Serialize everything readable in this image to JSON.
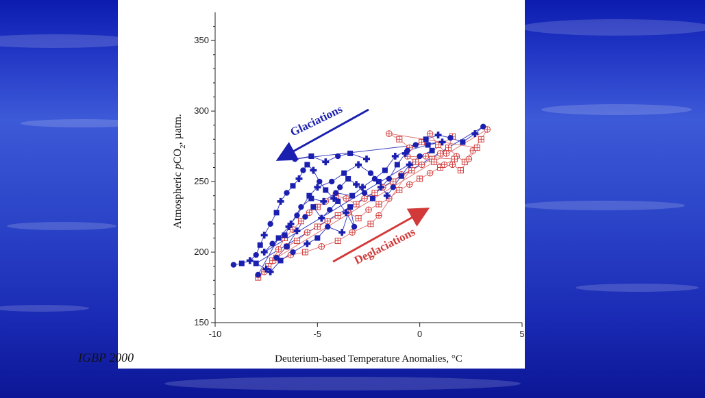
{
  "credit": "IGBP 2000",
  "colors": {
    "glacial": "#1a1fb0",
    "deglacial": "#d23a3a"
  },
  "chart_data": {
    "type": "scatter",
    "title": "",
    "xlabel": "Deuterium-based Temperature Anomalies, °C",
    "ylabel": "Atmospheric pCO2, µatm.",
    "ylabel_parts": {
      "pre": "Atmospheric ",
      "italic": "p",
      "co": "CO",
      "sub": "2",
      "post": ", µatm."
    },
    "xlim": [
      -10,
      5
    ],
    "ylim": [
      150,
      370
    ],
    "xticks": [
      -10,
      -5,
      0,
      5
    ],
    "yticks": [
      150,
      200,
      250,
      300,
      350
    ],
    "grid": false,
    "annotations": [
      {
        "text": "Glaciations",
        "color": "#1a1fb0",
        "arrow": "down-left"
      },
      {
        "text": "Deglaciations",
        "color": "#d23a3a",
        "arrow": "up-right"
      }
    ],
    "series": [
      {
        "color": "#1a1fb0",
        "points": [
          [
            -9.1,
            191
          ],
          [
            -8.7,
            192
          ],
          [
            -8.3,
            194
          ],
          [
            -8.0,
            198
          ],
          [
            -7.8,
            205
          ],
          [
            -7.6,
            212
          ],
          [
            -7.3,
            220
          ],
          [
            -7.0,
            228
          ],
          [
            -6.8,
            236
          ],
          [
            -6.5,
            242
          ],
          [
            -6.2,
            247
          ],
          [
            -5.9,
            252
          ],
          [
            -5.7,
            258
          ],
          [
            -5.5,
            262
          ],
          [
            -5.2,
            258
          ],
          [
            -4.9,
            250
          ],
          [
            -4.6,
            244
          ],
          [
            -4.2,
            238
          ],
          [
            -3.9,
            246
          ],
          [
            -3.5,
            252
          ],
          [
            -3.1,
            248
          ],
          [
            -2.7,
            242
          ],
          [
            -2.3,
            238
          ],
          [
            -1.9,
            246
          ],
          [
            -1.5,
            252
          ],
          [
            -1.1,
            262
          ],
          [
            -0.7,
            270
          ],
          [
            -0.2,
            276
          ],
          [
            0.3,
            280
          ],
          [
            0.9,
            283
          ],
          [
            1.5,
            281
          ],
          [
            2.1,
            278
          ],
          [
            2.7,
            284
          ],
          [
            3.1,
            289
          ],
          [
            -8.0,
            192
          ],
          [
            -7.5,
            188
          ],
          [
            -7.0,
            196
          ],
          [
            -6.5,
            204
          ],
          [
            -6.0,
            215
          ],
          [
            -5.6,
            225
          ],
          [
            -5.2,
            232
          ],
          [
            -4.8,
            224
          ],
          [
            -4.4,
            230
          ],
          [
            -4.0,
            236
          ],
          [
            -3.6,
            228
          ],
          [
            -3.2,
            218
          ],
          [
            -3.4,
            232
          ],
          [
            -3.8,
            214
          ],
          [
            -4.5,
            218
          ],
          [
            -5.0,
            210
          ],
          [
            -5.5,
            206
          ],
          [
            -6.2,
            200
          ],
          [
            -6.8,
            194
          ],
          [
            -7.3,
            186
          ],
          [
            -7.9,
            184
          ],
          [
            -6.9,
            210
          ],
          [
            -6.4,
            218
          ],
          [
            -6.0,
            226
          ],
          [
            -5.4,
            240
          ],
          [
            -5.0,
            246
          ],
          [
            -4.3,
            250
          ],
          [
            -3.7,
            256
          ],
          [
            -3.0,
            262
          ],
          [
            -2.4,
            256
          ],
          [
            -2.0,
            250
          ],
          [
            -1.6,
            240
          ],
          [
            -1.3,
            246
          ],
          [
            -0.9,
            254
          ],
          [
            -0.5,
            262
          ],
          [
            0.0,
            268
          ],
          [
            0.6,
            272
          ],
          [
            -7.6,
            200
          ],
          [
            -7.2,
            206
          ],
          [
            -6.6,
            212
          ],
          [
            -6.3,
            220
          ],
          [
            -5.8,
            232
          ],
          [
            -5.3,
            238
          ],
          [
            -4.7,
            236
          ],
          [
            -4.1,
            242
          ],
          [
            -3.3,
            240
          ],
          [
            -2.8,
            246
          ],
          [
            -2.2,
            252
          ],
          [
            -1.7,
            258
          ],
          [
            -1.2,
            268
          ],
          [
            -0.6,
            272
          ],
          [
            0.4,
            276
          ],
          [
            1.1,
            278
          ],
          [
            -6.1,
            266
          ],
          [
            -5.3,
            268
          ],
          [
            -4.6,
            264
          ],
          [
            -4.0,
            268
          ],
          [
            -3.4,
            270
          ],
          [
            -2.6,
            266
          ]
        ]
      },
      {
        "color": "#d23a3a",
        "points": [
          [
            -7.9,
            182
          ],
          [
            -7.6,
            186
          ],
          [
            -7.2,
            194
          ],
          [
            -6.9,
            202
          ],
          [
            -6.6,
            210
          ],
          [
            -6.2,
            216
          ],
          [
            -5.8,
            222
          ],
          [
            -5.4,
            228
          ],
          [
            -5.0,
            232
          ],
          [
            -4.6,
            236
          ],
          [
            -4.1,
            240
          ],
          [
            -3.6,
            238
          ],
          [
            -3.1,
            234
          ],
          [
            -2.7,
            238
          ],
          [
            -2.2,
            242
          ],
          [
            -1.8,
            246
          ],
          [
            -1.3,
            250
          ],
          [
            -0.9,
            255
          ],
          [
            -0.4,
            258
          ],
          [
            0.1,
            262
          ],
          [
            0.6,
            266
          ],
          [
            1.0,
            270
          ],
          [
            1.4,
            274
          ],
          [
            1.8,
            268
          ],
          [
            2.2,
            264
          ],
          [
            2.6,
            272
          ],
          [
            3.0,
            280
          ],
          [
            3.3,
            287
          ],
          [
            -7.0,
            196
          ],
          [
            -6.5,
            204
          ],
          [
            -6.0,
            208
          ],
          [
            -5.5,
            214
          ],
          [
            -5.0,
            218
          ],
          [
            -4.5,
            222
          ],
          [
            -4.0,
            226
          ],
          [
            -3.5,
            228
          ],
          [
            -3.0,
            224
          ],
          [
            -2.5,
            230
          ],
          [
            -2.0,
            234
          ],
          [
            -1.5,
            238
          ],
          [
            -1.0,
            244
          ],
          [
            -0.5,
            248
          ],
          [
            0.0,
            252
          ],
          [
            0.5,
            256
          ],
          [
            1.0,
            260
          ],
          [
            1.6,
            262
          ],
          [
            2.0,
            258
          ],
          [
            2.4,
            266
          ],
          [
            2.8,
            274
          ],
          [
            -1.5,
            284
          ],
          [
            -1.0,
            280
          ],
          [
            -0.5,
            274
          ],
          [
            0.1,
            278
          ],
          [
            0.5,
            284
          ],
          [
            0.9,
            276
          ],
          [
            1.3,
            270
          ],
          [
            1.6,
            282
          ],
          [
            0.3,
            268
          ],
          [
            0.7,
            264
          ],
          [
            1.2,
            262
          ],
          [
            1.7,
            266
          ],
          [
            -0.6,
            268
          ],
          [
            -0.2,
            264
          ],
          [
            -2.0,
            226
          ],
          [
            -2.4,
            220
          ],
          [
            -3.3,
            214
          ],
          [
            -4.0,
            208
          ],
          [
            -4.8,
            204
          ],
          [
            -5.6,
            200
          ],
          [
            -6.3,
            198
          ],
          [
            -7.4,
            190
          ]
        ]
      }
    ]
  }
}
